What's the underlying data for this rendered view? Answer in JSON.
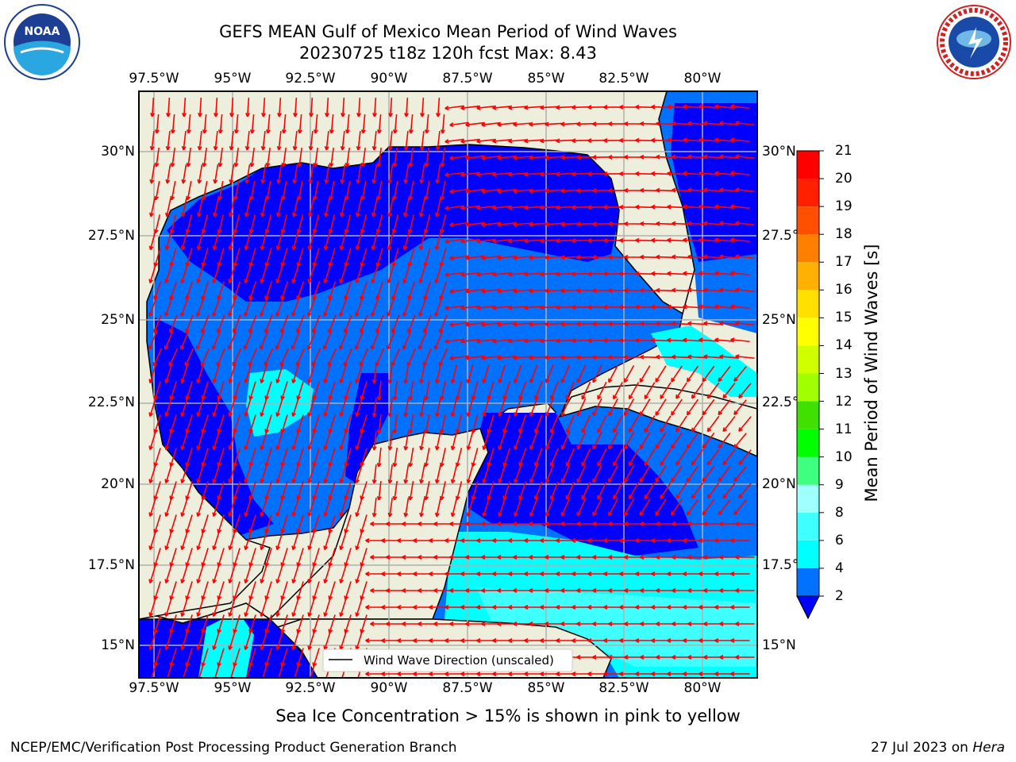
{
  "title_line1": "GEFS MEAN Gulf of Mexico Mean Period of Wind Waves",
  "title_line2": "20230725 t18z 120h fcst   Max: 8.43",
  "lon_ticks": [
    "97.5°W",
    "95°W",
    "92.5°W",
    "90°W",
    "87.5°W",
    "85°W",
    "82.5°W",
    "80°W"
  ],
  "lat_ticks": [
    "30°N",
    "27.5°N",
    "25°N",
    "22.5°N",
    "20°N",
    "17.5°N",
    "15°N"
  ],
  "colorbar": {
    "label": "Mean Period of Wind Waves [s]",
    "ticks": [
      "2",
      "4",
      "6",
      "8",
      "9",
      "10",
      "11",
      "12",
      "13",
      "14",
      "15",
      "16",
      "17",
      "18",
      "19",
      "20",
      "21"
    ],
    "colors": [
      "#0072ff",
      "#00c8ff",
      "#00ffff",
      "#40ffff",
      "#a0ffff",
      "#40ff80",
      "#00ff00",
      "#40e000",
      "#a0ff00",
      "#d0ff00",
      "#ffff00",
      "#ffe000",
      "#ffb000",
      "#ff8000",
      "#ff5000",
      "#ff2000",
      "#ff0000"
    ],
    "extend_color": "#0000ff"
  },
  "legend": {
    "label": "Wind Wave Direction (unscaled)"
  },
  "note": "Sea Ice Concentration > 15% is shown in pink to yellow",
  "footer_left": "NCEP/EMC/Verification Post Processing Product Generation Branch",
  "footer_date": "27 Jul 2023 on",
  "footer_host": "Hera",
  "logos": {
    "left_text": "NOAA",
    "right_text": "NATIONAL WEATHER SERVICE"
  },
  "colors": {
    "land": "#eeeedc",
    "arrow": "#ff0000",
    "grid": "#b0b0b0",
    "shallow": "#0072ff",
    "calm": "#0000ff",
    "mid": "#00ffff",
    "high": "#40ffff"
  }
}
